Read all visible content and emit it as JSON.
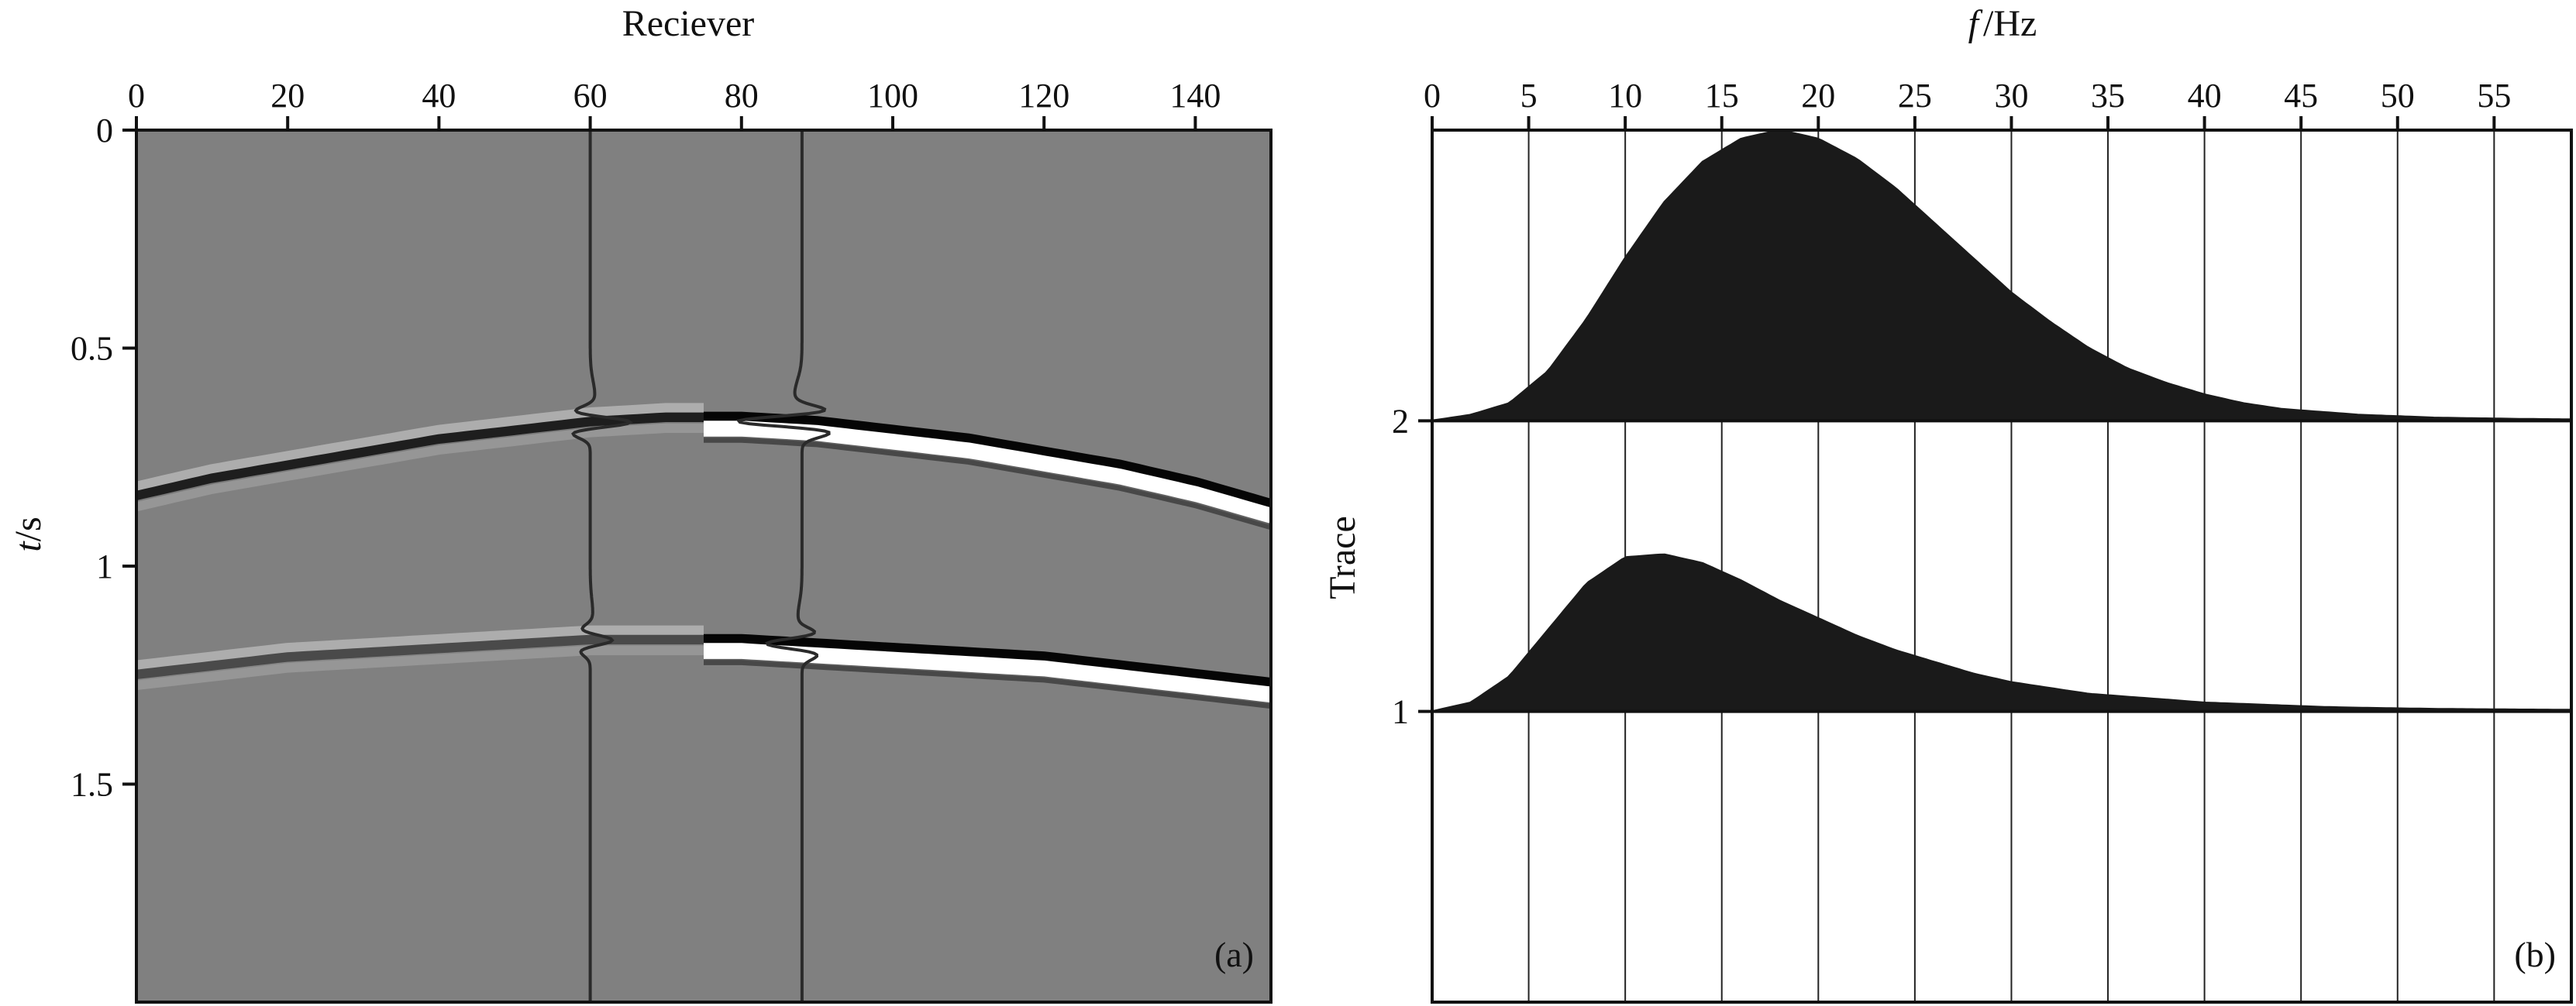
{
  "chart_data": [
    {
      "type": "heatmap",
      "panel_label": "(a)",
      "xlabel": "Reciever",
      "ylabel_italic": "t",
      "ylabel_unit": "/s",
      "xticks": [
        0,
        20,
        40,
        60,
        80,
        100,
        120,
        140
      ],
      "yticks": [
        0,
        0.5,
        1,
        1.5
      ],
      "xlim": [
        0,
        150
      ],
      "ylim": [
        0,
        2.0
      ],
      "x_axis_position": "top",
      "colormap": "gray",
      "background_color": "#808080",
      "events": [
        {
          "x": [
            0,
            10,
            20,
            30,
            40,
            50,
            60,
            70,
            80,
            90,
            100,
            110,
            120,
            130,
            140,
            150
          ],
          "t": [
            0.84,
            0.8,
            0.77,
            0.74,
            0.71,
            0.69,
            0.67,
            0.66,
            0.66,
            0.67,
            0.69,
            0.71,
            0.74,
            0.77,
            0.81,
            0.86
          ]
        },
        {
          "x": [
            0,
            10,
            20,
            30,
            40,
            50,
            60,
            70,
            80,
            90,
            100,
            110,
            120,
            130,
            140,
            150
          ],
          "t": [
            1.25,
            1.23,
            1.21,
            1.2,
            1.19,
            1.18,
            1.17,
            1.17,
            1.17,
            1.18,
            1.19,
            1.2,
            1.21,
            1.23,
            1.25,
            1.27
          ]
        }
      ],
      "amplitude_boost_from_x": 75,
      "overlay_traces_x": [
        60,
        88
      ]
    },
    {
      "type": "area",
      "panel_label": "(b)",
      "xlabel_italic": "f",
      "xlabel_unit": "/Hz",
      "ylabel": "Trace",
      "xticks": [
        0,
        5,
        10,
        15,
        20,
        25,
        30,
        35,
        40,
        45,
        50,
        55
      ],
      "yticks": [
        1,
        2
      ],
      "xlim": [
        0,
        59
      ],
      "ylim": [
        0,
        3
      ],
      "x_axis_position": "top",
      "grid": true,
      "fill_color": "#1a1a1a",
      "series": [
        {
          "trace": 2,
          "x": [
            0,
            2,
            4,
            6,
            8,
            10,
            12,
            14,
            16,
            18,
            20,
            22,
            24,
            26,
            28,
            30,
            32,
            34,
            36,
            38,
            40,
            42,
            44,
            46,
            48,
            50,
            52,
            54,
            56,
            59
          ],
          "values": [
            0,
            0.02,
            0.06,
            0.17,
            0.35,
            0.56,
            0.75,
            0.89,
            0.97,
            1.0,
            0.97,
            0.9,
            0.8,
            0.68,
            0.56,
            0.44,
            0.34,
            0.25,
            0.18,
            0.13,
            0.09,
            0.06,
            0.04,
            0.03,
            0.02,
            0.015,
            0.01,
            0.008,
            0.006,
            0.004
          ]
        },
        {
          "trace": 1,
          "x": [
            0,
            2,
            4,
            6,
            8,
            10,
            12,
            14,
            16,
            18,
            20,
            22,
            24,
            26,
            28,
            30,
            32,
            34,
            36,
            38,
            40,
            42,
            44,
            46,
            48,
            50,
            52,
            54,
            56,
            59
          ],
          "values": [
            0,
            0.03,
            0.12,
            0.28,
            0.44,
            0.53,
            0.54,
            0.51,
            0.45,
            0.38,
            0.32,
            0.26,
            0.21,
            0.17,
            0.13,
            0.1,
            0.08,
            0.06,
            0.05,
            0.04,
            0.03,
            0.025,
            0.02,
            0.015,
            0.012,
            0.01,
            0.008,
            0.007,
            0.006,
            0.005
          ]
        }
      ]
    }
  ]
}
